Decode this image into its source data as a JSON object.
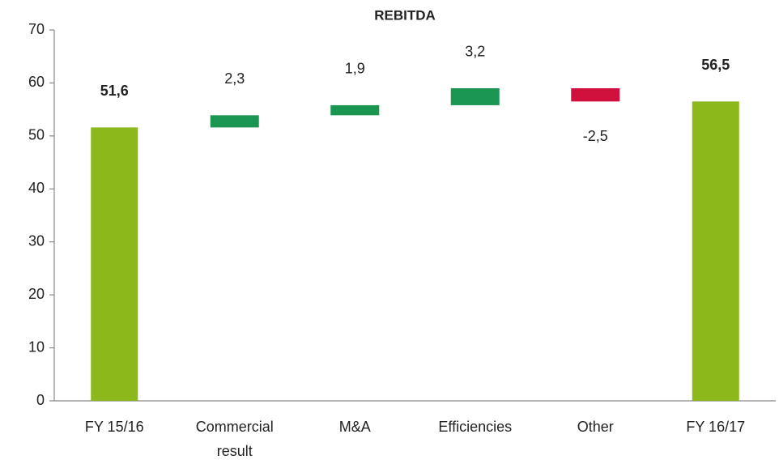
{
  "chart_data": {
    "type": "waterfall",
    "title": "REBITDA",
    "categories": [
      "FY 15/16",
      "Commercial result",
      "M&A",
      "Efficiencies",
      "Other",
      "FY 16/17"
    ],
    "values": [
      51.6,
      2.3,
      1.9,
      3.2,
      -2.5,
      56.5
    ],
    "value_labels": [
      "51,6",
      "2,3",
      "1,9",
      "3,2",
      "-2,5",
      "56,5"
    ],
    "measures": [
      "total",
      "relative",
      "relative",
      "relative",
      "relative",
      "total"
    ],
    "colors": {
      "total": "#8cb81c",
      "increase": "#1b9650",
      "decrease": "#d0103c"
    },
    "ylim": [
      0,
      70
    ],
    "yticks": [
      0,
      10,
      20,
      30,
      40,
      50,
      60,
      70
    ],
    "grid": false
  }
}
